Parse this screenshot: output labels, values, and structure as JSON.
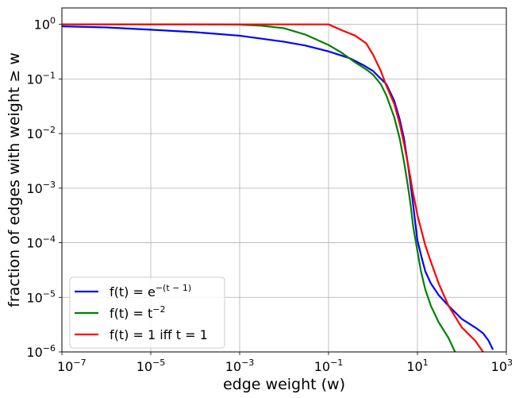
{
  "chart_data": {
    "type": "line",
    "xscale": "log",
    "yscale": "log",
    "xlim": [
      1e-07,
      1000
    ],
    "ylim": [
      1e-06,
      2
    ],
    "grid": true,
    "legend_position": "lower-left",
    "xlabel": "edge weight (w)",
    "ylabel": "fraction of edges with weight ≥ w",
    "x_ticks": [
      1e-07,
      1e-05,
      0.001,
      0.1,
      10,
      1000
    ],
    "x_tick_labels": [
      {
        "base": "10",
        "exp": "−7"
      },
      {
        "base": "10",
        "exp": "−5"
      },
      {
        "base": "10",
        "exp": "−3"
      },
      {
        "base": "10",
        "exp": "−1"
      },
      {
        "base": "10",
        "exp": "1"
      },
      {
        "base": "10",
        "exp": "3"
      }
    ],
    "y_ticks": [
      1,
      0.1,
      0.01,
      0.001,
      0.0001,
      1e-05,
      1e-06
    ],
    "y_tick_labels": [
      {
        "base": "10",
        "exp": "0"
      },
      {
        "base": "10",
        "exp": "−1"
      },
      {
        "base": "10",
        "exp": "−2"
      },
      {
        "base": "10",
        "exp": "−3"
      },
      {
        "base": "10",
        "exp": "−4"
      },
      {
        "base": "10",
        "exp": "−5"
      },
      {
        "base": "10",
        "exp": "−6"
      }
    ],
    "series": [
      {
        "name": "f(t) = e^{−(t − 1)}",
        "legend": {
          "pre": "f(t) = e",
          "sup": "−(t − 1)",
          "post": ""
        },
        "color": "#0000ff",
        "x": [
          1e-07,
          1e-06,
          1e-05,
          0.0001,
          0.001,
          0.01,
          0.03,
          0.1,
          0.3,
          0.6,
          1,
          2,
          3,
          4,
          5,
          6,
          7,
          8,
          9,
          10,
          12,
          15,
          20,
          30,
          50,
          100,
          200,
          300,
          400,
          500
        ],
        "y": [
          0.92,
          0.88,
          0.8,
          0.72,
          0.62,
          0.48,
          0.41,
          0.32,
          0.24,
          0.18,
          0.14,
          0.08,
          0.04,
          0.018,
          0.008,
          0.003,
          0.0012,
          0.0005,
          0.00022,
          0.00011,
          6e-05,
          3e-05,
          1.8e-05,
          1.1e-05,
          7e-06,
          4e-06,
          2.8e-06,
          2.2e-06,
          1.6e-06,
          1.1e-06
        ]
      },
      {
        "name": "f(t) = t^{−2}",
        "legend": {
          "pre": "f(t) = t",
          "sup": "−2",
          "post": ""
        },
        "color": "#008000",
        "x": [
          1e-07,
          0.0001,
          0.001,
          0.003,
          0.01,
          0.03,
          0.1,
          0.2,
          0.4,
          0.7,
          1,
          1.5,
          2,
          3,
          4,
          5,
          6,
          7,
          8,
          10,
          12,
          15,
          20,
          30,
          50,
          70
        ],
        "y": [
          1,
          1,
          0.99,
          0.95,
          0.85,
          0.65,
          0.42,
          0.3,
          0.2,
          0.15,
          0.12,
          0.08,
          0.05,
          0.02,
          0.008,
          0.003,
          0.0012,
          0.0005,
          0.0002,
          7e-05,
          3e-05,
          1.4e-05,
          7e-06,
          3.5e-06,
          1.8e-06,
          1e-06
        ]
      },
      {
        "name": "f(t) = 1   iff   t = 1",
        "legend": {
          "pre": "f(t) = 1   iff   t = 1",
          "sup": "",
          "post": ""
        },
        "color": "#ff0000",
        "x": [
          1e-07,
          0.1,
          0.2,
          0.4,
          0.7,
          1,
          1.5,
          2,
          3,
          4,
          5,
          6,
          7,
          8,
          9,
          10,
          12,
          15,
          20,
          30,
          50,
          100,
          200,
          300
        ],
        "y": [
          1,
          1,
          0.78,
          0.62,
          0.45,
          0.28,
          0.14,
          0.075,
          0.035,
          0.015,
          0.0065,
          0.003,
          0.0015,
          0.0008,
          0.0005,
          0.00032,
          0.00018,
          9e-05,
          4.5e-05,
          1.8e-05,
          7e-06,
          2.8e-06,
          1.6e-06,
          1e-06
        ]
      }
    ]
  }
}
